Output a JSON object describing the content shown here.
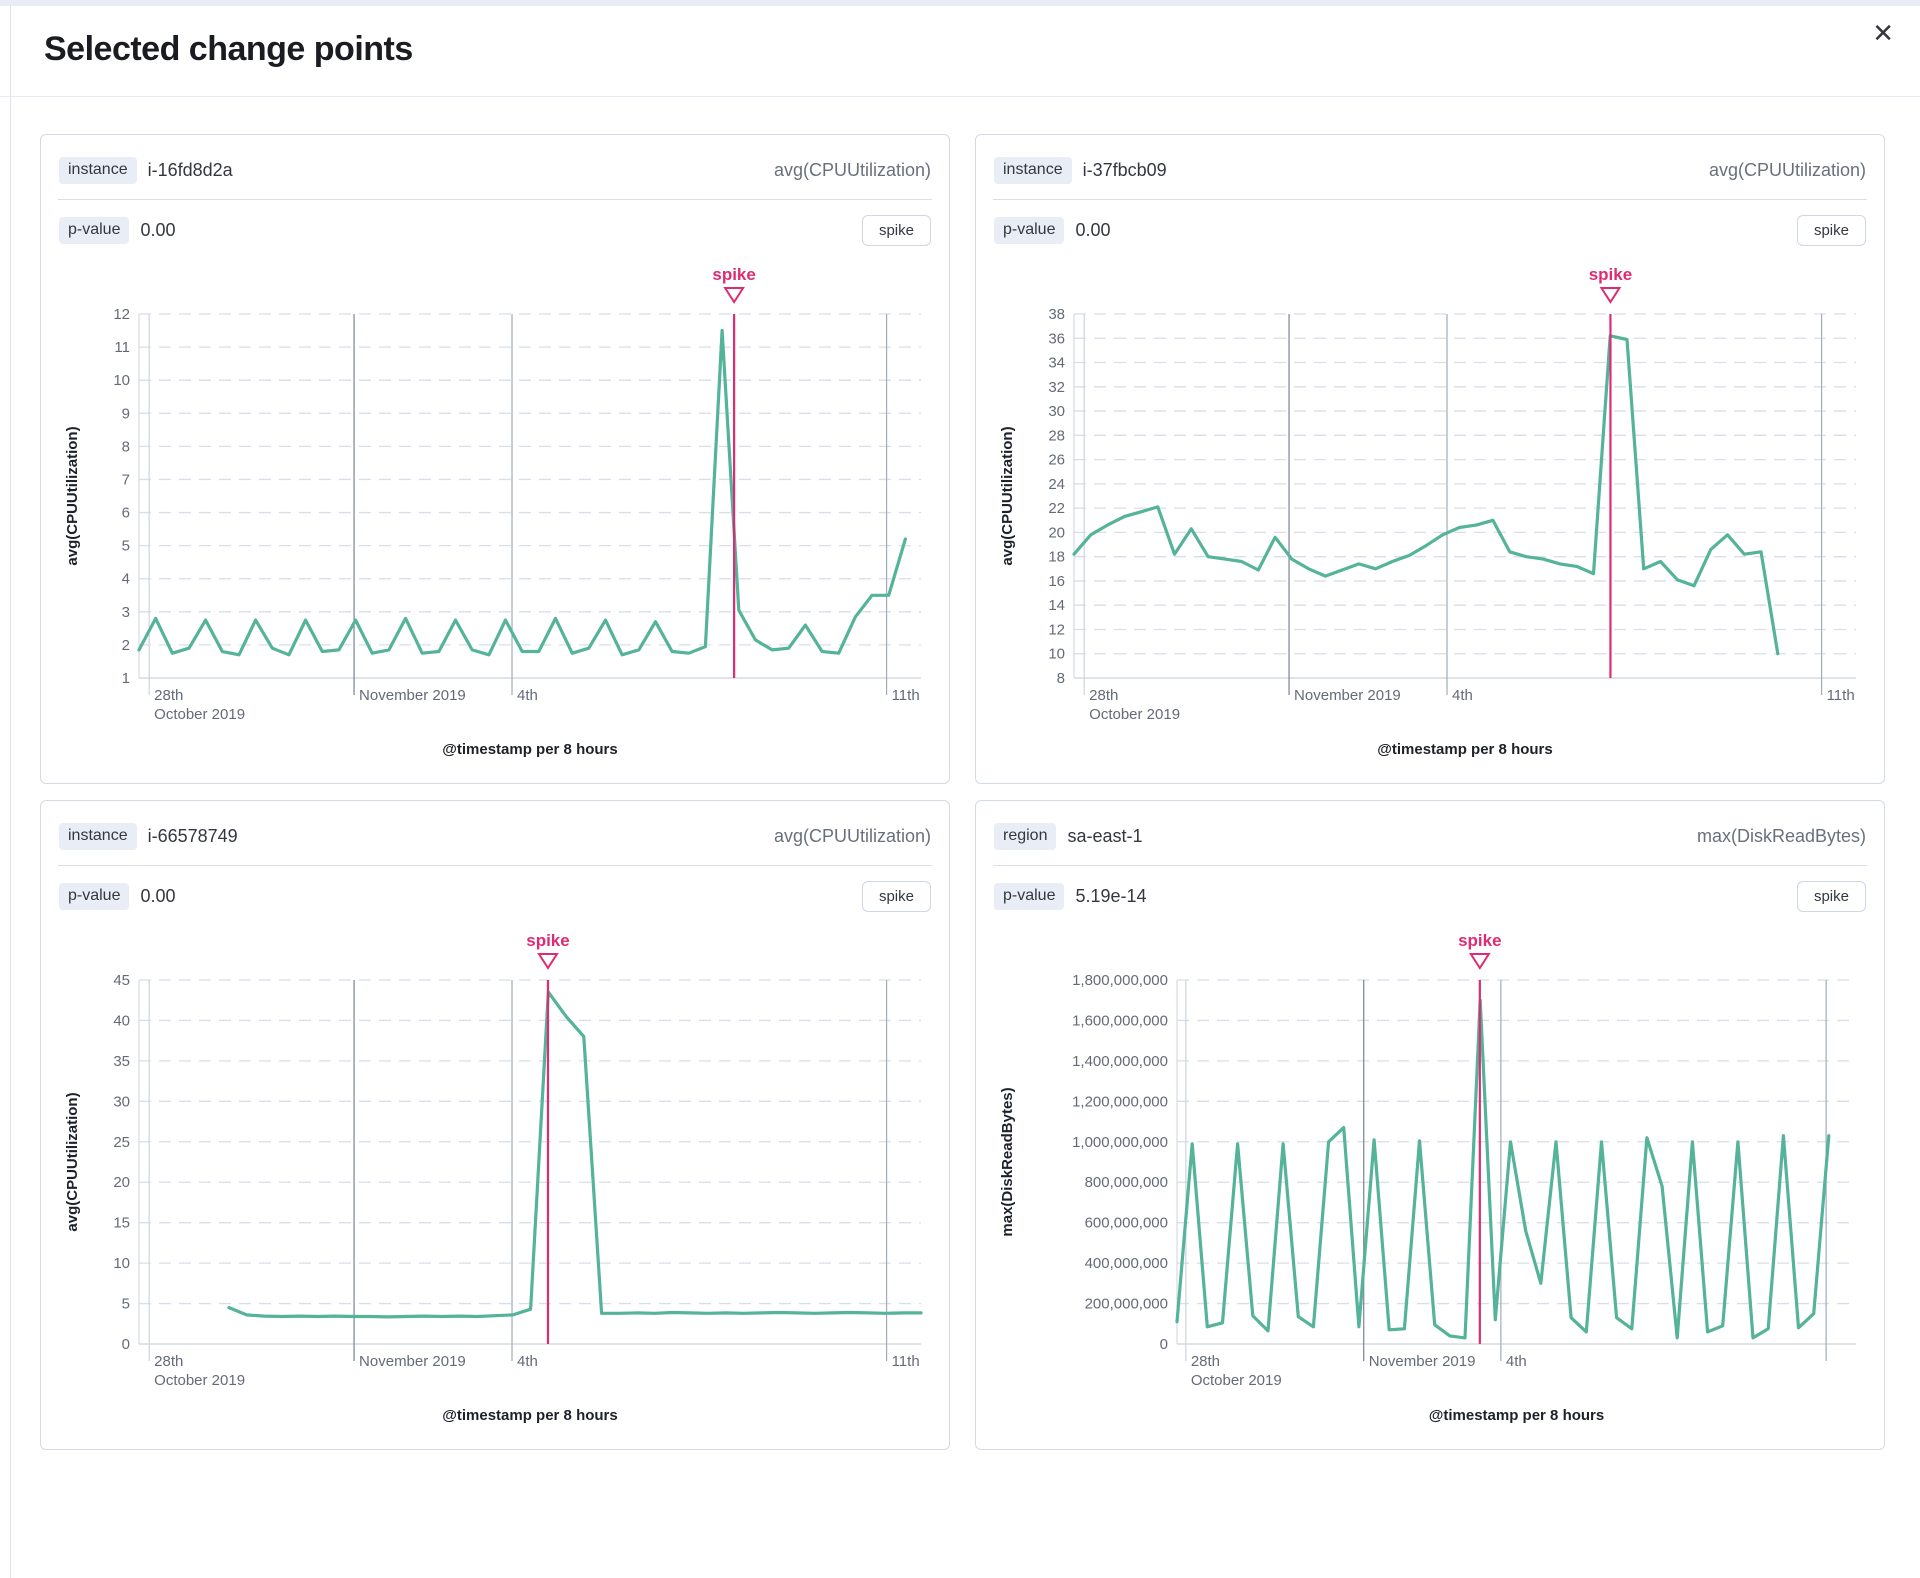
{
  "modal": {
    "title": "Selected change points",
    "close_icon": "✕"
  },
  "colors": {
    "line": "#54b399",
    "annotation": "#dd2c74",
    "grid_dashed": "#d8deea",
    "axis_line": "#ccd3df",
    "vgrid_dark": "#7b8394",
    "vgrid_medium": "#a2abba",
    "vgrid_light": "#cdd4e0",
    "tick_text": "#646a77",
    "axis_title_text": "#1d2129"
  },
  "panels": [
    {
      "field": "instance",
      "value": "i-16fd8d2a",
      "metric": "avg(CPUUtilization)",
      "p_label": "p-value",
      "p_value": "0.00",
      "change_type": "spike"
    },
    {
      "field": "instance",
      "value": "i-37fbcb09",
      "metric": "avg(CPUUtilization)",
      "p_label": "p-value",
      "p_value": "0.00",
      "change_type": "spike"
    },
    {
      "field": "instance",
      "value": "i-66578749",
      "metric": "avg(CPUUtilization)",
      "p_label": "p-value",
      "p_value": "0.00",
      "change_type": "spike"
    },
    {
      "field": "region",
      "value": "sa-east-1",
      "metric": "max(DiskReadBytes)",
      "p_label": "p-value",
      "p_value": "5.19e-14",
      "change_type": "spike"
    }
  ],
  "chart_data": [
    {
      "type": "line",
      "ylabel": "avg(CPUUtilization)",
      "xlabel": "@timestamp per 8 hours",
      "ylim": [
        1,
        12
      ],
      "yticks": [
        1,
        2,
        3,
        4,
        5,
        6,
        7,
        8,
        9,
        10,
        11,
        12
      ],
      "ytick_labels": [
        "1",
        "2",
        "3",
        "4",
        "5",
        "6",
        "7",
        "8",
        "9",
        "10",
        "11",
        "12"
      ],
      "x_gridlines": [
        {
          "t": 0.013,
          "lines": [
            "28th",
            "October 2019"
          ],
          "strength": "light"
        },
        {
          "t": 0.275,
          "lines": [
            "November 2019"
          ],
          "strength": "dark"
        },
        {
          "t": 0.477,
          "lines": [
            "4th"
          ],
          "strength": "medium"
        },
        {
          "t": 0.956,
          "lines": [
            "11th"
          ],
          "strength": "medium"
        }
      ],
      "t_start": 0,
      "t_end": 0.98,
      "values": [
        1.85,
        2.8,
        1.75,
        1.9,
        2.75,
        1.8,
        1.7,
        2.75,
        1.9,
        1.7,
        2.75,
        1.8,
        1.85,
        2.75,
        1.75,
        1.85,
        2.8,
        1.75,
        1.8,
        2.75,
        1.85,
        1.7,
        2.75,
        1.8,
        1.8,
        2.8,
        1.75,
        1.9,
        2.75,
        1.7,
        1.85,
        2.7,
        1.8,
        1.75,
        1.95,
        11.5,
        3.05,
        2.15,
        1.85,
        1.9,
        2.6,
        1.8,
        1.75,
        2.85,
        3.5,
        3.5,
        5.2
      ],
      "annotation": {
        "label": "spike",
        "t": 0.761
      }
    },
    {
      "type": "line",
      "ylabel": "avg(CPUUtilization)",
      "xlabel": "@timestamp per 8 hours",
      "ylim": [
        8,
        38
      ],
      "yticks": [
        8,
        10,
        12,
        14,
        16,
        18,
        20,
        22,
        24,
        26,
        28,
        30,
        32,
        34,
        36,
        38
      ],
      "ytick_labels": [
        "8",
        "10",
        "12",
        "14",
        "16",
        "18",
        "20",
        "22",
        "24",
        "26",
        "28",
        "30",
        "32",
        "34",
        "36",
        "38"
      ],
      "x_gridlines": [
        {
          "t": 0.013,
          "lines": [
            "28th",
            "October 2019"
          ],
          "strength": "light"
        },
        {
          "t": 0.275,
          "lines": [
            "November 2019"
          ],
          "strength": "dark"
        },
        {
          "t": 0.477,
          "lines": [
            "4th"
          ],
          "strength": "medium"
        },
        {
          "t": 0.956,
          "lines": [
            "11th"
          ],
          "strength": "medium"
        }
      ],
      "t_start": 0,
      "t_end": 0.9,
      "values": [
        18.2,
        19.8,
        20.6,
        21.3,
        21.7,
        22.1,
        18.2,
        20.3,
        18.0,
        17.8,
        17.6,
        16.9,
        19.6,
        17.8,
        17.0,
        16.4,
        16.9,
        17.4,
        17.0,
        17.6,
        18.1,
        18.9,
        19.8,
        20.4,
        20.6,
        21.0,
        18.4,
        18.0,
        17.8,
        17.4,
        17.2,
        16.6,
        36.2,
        35.9,
        17.0,
        17.6,
        16.1,
        15.6,
        18.6,
        19.8,
        18.2,
        18.4,
        10.0
      ],
      "annotation": {
        "label": "spike",
        "t": 0.686
      }
    },
    {
      "type": "line",
      "ylabel": "avg(CPUUtilization)",
      "xlabel": "@timestamp per 8 hours",
      "ylim": [
        0,
        45
      ],
      "yticks": [
        0,
        5,
        10,
        15,
        20,
        25,
        30,
        35,
        40,
        45
      ],
      "ytick_labels": [
        "0",
        "5",
        "10",
        "15",
        "20",
        "25",
        "30",
        "35",
        "40",
        "45"
      ],
      "x_gridlines": [
        {
          "t": 0.013,
          "lines": [
            "28th",
            "October 2019"
          ],
          "strength": "light"
        },
        {
          "t": 0.275,
          "lines": [
            "November 2019"
          ],
          "strength": "dark"
        },
        {
          "t": 0.477,
          "lines": [
            "4th"
          ],
          "strength": "medium"
        },
        {
          "t": 0.956,
          "lines": [
            "11th"
          ],
          "strength": "medium"
        }
      ],
      "t_start": 0.115,
      "t_end": 1.0,
      "values": [
        4.5,
        3.6,
        3.45,
        3.4,
        3.45,
        3.4,
        3.45,
        3.4,
        3.4,
        3.35,
        3.4,
        3.45,
        3.4,
        3.45,
        3.4,
        3.5,
        3.6,
        4.3,
        43.5,
        40.5,
        38.0,
        3.8,
        3.8,
        3.85,
        3.8,
        3.9,
        3.85,
        3.8,
        3.85,
        3.8,
        3.85,
        3.9,
        3.85,
        3.8,
        3.85,
        3.9,
        3.85,
        3.8,
        3.85,
        3.85
      ],
      "annotation": {
        "label": "spike",
        "t": 0.523
      }
    },
    {
      "type": "line",
      "ylabel": "max(DiskReadBytes)",
      "xlabel": "@timestamp per 8 hours",
      "ylim": [
        0,
        1800000000
      ],
      "yticks": [
        0,
        200000000,
        400000000,
        600000000,
        800000000,
        1000000000,
        1200000000,
        1400000000,
        1600000000,
        1800000000
      ],
      "ytick_labels": [
        "0",
        "200,000,000",
        "400,000,000",
        "600,000,000",
        "800,000,000",
        "1,000,000,000",
        "1,200,000,000",
        "1,400,000,000",
        "1,600,000,000",
        "1,800,000,000"
      ],
      "x_gridlines": [
        {
          "t": 0.013,
          "lines": [
            "28th",
            "October 2019"
          ],
          "strength": "light"
        },
        {
          "t": 0.275,
          "lines": [
            "November 2019"
          ],
          "strength": "dark"
        },
        {
          "t": 0.477,
          "lines": [
            "4th"
          ],
          "strength": "medium"
        },
        {
          "t": 0.956,
          "lines": [],
          "strength": "medium"
        }
      ],
      "t_start": 0,
      "t_end": 0.96,
      "values": [
        110000000,
        990000000,
        85000000,
        105000000,
        990000000,
        140000000,
        65000000,
        990000000,
        135000000,
        85000000,
        1000000000,
        1070000000,
        85000000,
        1010000000,
        70000000,
        75000000,
        1005000000,
        95000000,
        40000000,
        30000000,
        1700000000,
        120000000,
        1000000000,
        560000000,
        300000000,
        1000000000,
        130000000,
        60000000,
        1000000000,
        130000000,
        75000000,
        1020000000,
        780000000,
        30000000,
        1000000000,
        60000000,
        90000000,
        1000000000,
        30000000,
        75000000,
        1030000000,
        80000000,
        150000000,
        1030000000
      ],
      "annotation": {
        "label": "spike",
        "t": 0.446
      }
    }
  ]
}
